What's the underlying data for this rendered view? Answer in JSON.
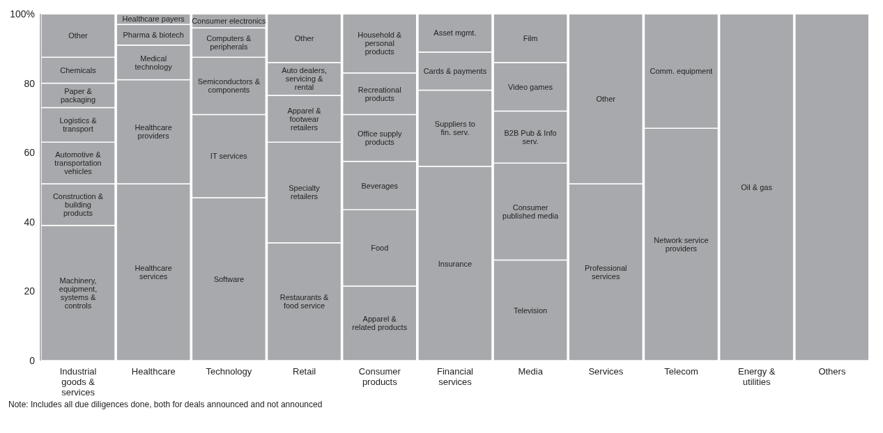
{
  "chart_data": {
    "type": "bar",
    "stacked": true,
    "categories": [
      "Industrial goods & services",
      "Healthcare",
      "Technology",
      "Retail",
      "Consumer products",
      "Financial services",
      "Media",
      "Services",
      "Telecom",
      "Energy & utilities",
      "Others"
    ],
    "ylim": [
      0,
      100
    ],
    "yticks": [
      0,
      20,
      40,
      60,
      80,
      {
        "value": 100,
        "label": "100%"
      }
    ],
    "annotations": [
      "Note: Includes all due diligences done, both for deals announced and not announced"
    ],
    "series": [
      {
        "name": "Machinery, equipment, systems & controls",
        "color": "#a7a9ac",
        "values": [
          39,
          null,
          null,
          null,
          null,
          null,
          null,
          null,
          null,
          null,
          null
        ]
      },
      {
        "name": "Construction & building products",
        "color": "#a7a9ac",
        "values": [
          12,
          null,
          null,
          null,
          null,
          null,
          null,
          null,
          null,
          null,
          null
        ]
      },
      {
        "name": "Automotive & transportation vehicles",
        "color": "#a7a9ac",
        "values": [
          12,
          null,
          null,
          null,
          null,
          null,
          null,
          null,
          null,
          null,
          null
        ]
      },
      {
        "name": "Logistics & transport",
        "color": "#a7a9ac",
        "values": [
          10,
          null,
          null,
          null,
          null,
          null,
          null,
          null,
          null,
          null,
          null
        ]
      },
      {
        "name": "Paper & packaging",
        "color": "#a7a9ac",
        "values": [
          7,
          null,
          null,
          null,
          null,
          null,
          null,
          null,
          null,
          null,
          null
        ]
      },
      {
        "name": "Chemicals",
        "color": "#a7a9ac",
        "values": [
          7.5,
          null,
          null,
          null,
          null,
          null,
          null,
          null,
          null,
          null,
          null
        ]
      },
      {
        "name": "Other",
        "color": "#a7a9ac",
        "values": [
          12.5,
          null,
          null,
          null,
          null,
          null,
          null,
          null,
          null,
          null,
          null
        ]
      },
      {
        "name": "Healthcare services",
        "color": "#a7a9ac",
        "values": [
          null,
          51,
          null,
          null,
          null,
          null,
          null,
          null,
          null,
          null,
          null
        ]
      },
      {
        "name": "Healthcare providers",
        "color": "#a7a9ac",
        "values": [
          null,
          30,
          null,
          null,
          null,
          null,
          null,
          null,
          null,
          null,
          null
        ]
      },
      {
        "name": "Medical technology",
        "color": "#a7a9ac",
        "values": [
          null,
          10,
          null,
          null,
          null,
          null,
          null,
          null,
          null,
          null,
          null
        ]
      },
      {
        "name": "Pharma & biotech",
        "color": "#a7a9ac",
        "values": [
          null,
          6,
          null,
          null,
          null,
          null,
          null,
          null,
          null,
          null,
          null
        ]
      },
      {
        "name": "Healthcare payers",
        "color": "#a7a9ac",
        "values": [
          null,
          3,
          null,
          null,
          null,
          null,
          null,
          null,
          null,
          null,
          null
        ]
      },
      {
        "name": "Software",
        "color": "#a7a9ac",
        "values": [
          null,
          null,
          47,
          null,
          null,
          null,
          null,
          null,
          null,
          null,
          null
        ]
      },
      {
        "name": "IT services",
        "color": "#a7a9ac",
        "values": [
          null,
          null,
          24,
          null,
          null,
          null,
          null,
          null,
          null,
          null,
          null
        ]
      },
      {
        "name": "Semiconductors & components",
        "color": "#a7a9ac",
        "values": [
          null,
          null,
          16.5,
          null,
          null,
          null,
          null,
          null,
          null,
          null,
          null
        ]
      },
      {
        "name": "Computers & peripherals",
        "color": "#a7a9ac",
        "values": [
          null,
          null,
          8.5,
          null,
          null,
          null,
          null,
          null,
          null,
          null,
          null
        ]
      },
      {
        "name": "Consumer electronics",
        "color": "#a7a9ac",
        "values": [
          null,
          null,
          4,
          null,
          null,
          null,
          null,
          null,
          null,
          null,
          null
        ]
      },
      {
        "name": "Restaurants & food service",
        "color": "#a7a9ac",
        "values": [
          null,
          null,
          null,
          34,
          null,
          null,
          null,
          null,
          null,
          null,
          null
        ]
      },
      {
        "name": "Specialty retailers",
        "color": "#a7a9ac",
        "values": [
          null,
          null,
          null,
          29,
          null,
          null,
          null,
          null,
          null,
          null,
          null
        ]
      },
      {
        "name": "Apparel & footwear retailers",
        "color": "#a7a9ac",
        "values": [
          null,
          null,
          null,
          13.5,
          null,
          null,
          null,
          null,
          null,
          null,
          null
        ]
      },
      {
        "name": "Auto dealers, servicing & rental",
        "color": "#a7a9ac",
        "values": [
          null,
          null,
          null,
          9.5,
          null,
          null,
          null,
          null,
          null,
          null,
          null
        ]
      },
      {
        "name": "Other",
        "color": "#a7a9ac",
        "values": [
          null,
          null,
          null,
          14,
          null,
          null,
          null,
          null,
          null,
          null,
          null
        ]
      },
      {
        "name": "Apparel & related products",
        "color": "#a7a9ac",
        "values": [
          null,
          null,
          null,
          null,
          21.5,
          null,
          null,
          null,
          null,
          null,
          null
        ]
      },
      {
        "name": "Food",
        "color": "#a7a9ac",
        "values": [
          null,
          null,
          null,
          null,
          22,
          null,
          null,
          null,
          null,
          null,
          null
        ]
      },
      {
        "name": "Beverages",
        "color": "#a7a9ac",
        "values": [
          null,
          null,
          null,
          null,
          14,
          null,
          null,
          null,
          null,
          null,
          null
        ]
      },
      {
        "name": "Office supply products",
        "color": "#a7a9ac",
        "values": [
          null,
          null,
          null,
          null,
          13.5,
          null,
          null,
          null,
          null,
          null,
          null
        ]
      },
      {
        "name": "Recreational products",
        "color": "#a7a9ac",
        "values": [
          null,
          null,
          null,
          null,
          12,
          null,
          null,
          null,
          null,
          null,
          null
        ]
      },
      {
        "name": "Household & personal products",
        "color": "#a7a9ac",
        "values": [
          null,
          null,
          null,
          null,
          17,
          null,
          null,
          null,
          null,
          null,
          null
        ]
      },
      {
        "name": "Insurance",
        "color": "#a7a9ac",
        "values": [
          null,
          null,
          null,
          null,
          null,
          56,
          null,
          null,
          null,
          null,
          null
        ]
      },
      {
        "name": "Suppliers to fin. serv.",
        "color": "#a7a9ac",
        "values": [
          null,
          null,
          null,
          null,
          null,
          22,
          null,
          null,
          null,
          null,
          null
        ]
      },
      {
        "name": "Cards & payments",
        "color": "#a7a9ac",
        "values": [
          null,
          null,
          null,
          null,
          null,
          11,
          null,
          null,
          null,
          null,
          null
        ]
      },
      {
        "name": "Asset mgmt.",
        "color": "#a7a9ac",
        "values": [
          null,
          null,
          null,
          null,
          null,
          11,
          null,
          null,
          null,
          null,
          null
        ]
      },
      {
        "name": "Television",
        "color": "#a7a9ac",
        "values": [
          null,
          null,
          null,
          null,
          null,
          null,
          29,
          null,
          null,
          null,
          null
        ]
      },
      {
        "name": "Consumer published media",
        "color": "#a7a9ac",
        "values": [
          null,
          null,
          null,
          null,
          null,
          null,
          28,
          null,
          null,
          null,
          null
        ]
      },
      {
        "name": "B2B Pub & Info serv.",
        "color": "#a7a9ac",
        "values": [
          null,
          null,
          null,
          null,
          null,
          null,
          15,
          null,
          null,
          null,
          null
        ]
      },
      {
        "name": "Video games",
        "color": "#a7a9ac",
        "values": [
          null,
          null,
          null,
          null,
          null,
          null,
          14,
          null,
          null,
          null,
          null
        ]
      },
      {
        "name": "Film",
        "color": "#a7a9ac",
        "values": [
          null,
          null,
          null,
          null,
          null,
          null,
          14,
          null,
          null,
          null,
          null
        ]
      },
      {
        "name": "Professional services",
        "color": "#a7a9ac",
        "values": [
          null,
          null,
          null,
          null,
          null,
          null,
          null,
          51,
          null,
          null,
          null
        ]
      },
      {
        "name": "Other",
        "color": "#a7a9ac",
        "values": [
          null,
          null,
          null,
          null,
          null,
          null,
          null,
          49,
          null,
          null,
          null
        ]
      },
      {
        "name": "Network service providers",
        "color": "#a7a9ac",
        "values": [
          null,
          null,
          null,
          null,
          null,
          null,
          null,
          null,
          67,
          null,
          null
        ]
      },
      {
        "name": "Comm. equipment",
        "color": "#a7a9ac",
        "values": [
          null,
          null,
          null,
          null,
          null,
          null,
          null,
          null,
          33,
          null,
          null
        ]
      },
      {
        "name": "Oil & gas",
        "color": "#a7a9ac",
        "values": [
          null,
          null,
          null,
          null,
          null,
          null,
          null,
          null,
          null,
          100,
          null
        ]
      },
      {
        "color": "#a7a9ac",
        "values": [
          null,
          null,
          null,
          null,
          null,
          null,
          null,
          null,
          null,
          null,
          100
        ]
      }
    ]
  }
}
